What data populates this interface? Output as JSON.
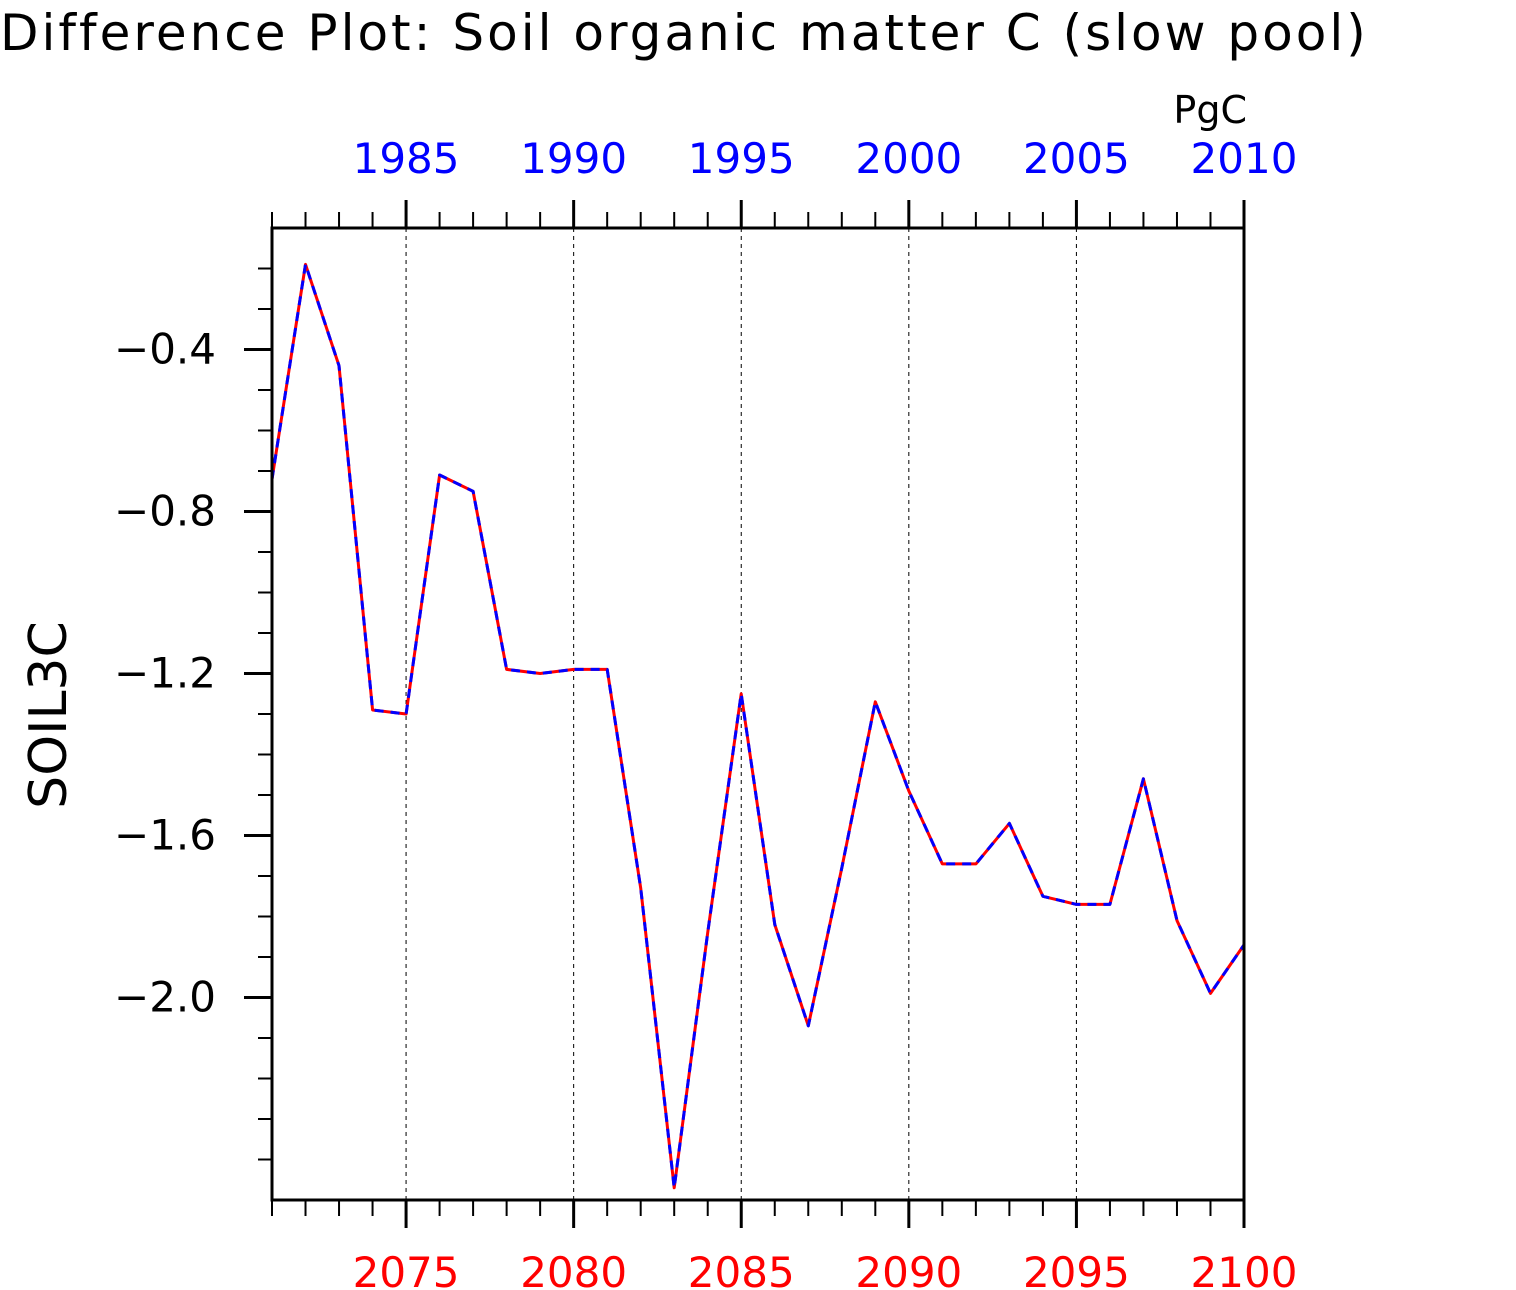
{
  "chart_data": {
    "type": "line",
    "title": "Difference Plot: Soil organic matter C (slow pool)",
    "units": "PgC",
    "ylabel": "SOIL3C",
    "ylim": [
      -2.5,
      -0.1
    ],
    "yticks": [
      -0.4,
      -0.8,
      -1.2,
      -1.6,
      -2.0
    ],
    "ytick_labels": [
      "−0.4",
      "−0.8",
      "−1.2",
      "−1.6",
      "−2.0"
    ],
    "x_bottom": {
      "range": [
        2071,
        2100
      ],
      "ticks": [
        2075,
        2080,
        2085,
        2090,
        2095,
        2100
      ],
      "tick_labels": [
        "2075",
        "2080",
        "2085",
        "2090",
        "2095",
        "2100"
      ],
      "color": "#ff0000"
    },
    "x_top": {
      "range": [
        1981,
        2010
      ],
      "ticks": [
        1985,
        1990,
        1995,
        2000,
        2005,
        2010
      ],
      "tick_labels": [
        "1985",
        "1990",
        "1995",
        "2000",
        "2005",
        "2010"
      ],
      "color": "#0000ff"
    },
    "grid": "vertical dashed at labeled x ticks",
    "series": [
      {
        "color": "#ff0000",
        "style": "solid",
        "x": [
          2071,
          2072,
          2073,
          2074,
          2075,
          2076,
          2077,
          2078,
          2079,
          2080,
          2081,
          2082,
          2083,
          2084,
          2085,
          2086,
          2087,
          2088,
          2089,
          2090,
          2091,
          2092,
          2093,
          2094,
          2095,
          2096,
          2097,
          2098,
          2099,
          2100
        ],
        "values": [
          -0.72,
          -0.19,
          -0.44,
          -1.29,
          -1.3,
          -0.71,
          -0.75,
          -1.19,
          -1.2,
          -1.19,
          -1.19,
          -1.73,
          -2.47,
          -1.84,
          -1.25,
          -1.82,
          -2.07,
          -1.68,
          -1.27,
          -1.49,
          -1.67,
          -1.67,
          -1.57,
          -1.75,
          -1.77,
          -1.77,
          -1.46,
          -1.81,
          -1.99,
          -1.87
        ]
      },
      {
        "color": "#0000ff",
        "style": "dashed",
        "x": [
          1981,
          1982,
          1983,
          1984,
          1985,
          1986,
          1987,
          1988,
          1989,
          1990,
          1991,
          1992,
          1993,
          1994,
          1995,
          1996,
          1997,
          1998,
          1999,
          2000,
          2001,
          2002,
          2003,
          2004,
          2005,
          2006,
          2007,
          2008,
          2009,
          2010
        ],
        "values": [
          -0.72,
          -0.19,
          -0.44,
          -1.29,
          -1.3,
          -0.71,
          -0.75,
          -1.19,
          -1.2,
          -1.19,
          -1.19,
          -1.73,
          -2.47,
          -1.84,
          -1.25,
          -1.82,
          -2.07,
          -1.68,
          -1.27,
          -1.49,
          -1.67,
          -1.67,
          -1.57,
          -1.75,
          -1.77,
          -1.77,
          -1.46,
          -1.81,
          -1.99,
          -1.87
        ]
      }
    ]
  }
}
